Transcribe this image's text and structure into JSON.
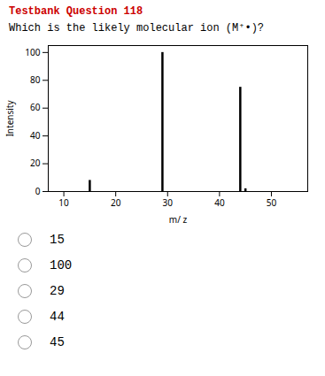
{
  "chart_data": {
    "type": "bar",
    "title": "Testbank Question 118",
    "subtitle": "Which is the likely molecular ion (M⁺•)?",
    "x": [
      15,
      29,
      44,
      45
    ],
    "values": [
      8,
      100,
      75,
      2
    ],
    "color": "#000000",
    "xlabel": "m/ z",
    "ylabel": "Intensity",
    "xlim": [
      7,
      57
    ],
    "xticks": [
      10,
      20,
      30,
      40,
      50
    ],
    "ylim": [
      0,
      105
    ],
    "yticks": [
      0,
      20,
      40,
      60,
      80,
      100
    ],
    "grid": false,
    "annotations": [
      "15",
      "100",
      "29",
      "44",
      "45"
    ]
  }
}
